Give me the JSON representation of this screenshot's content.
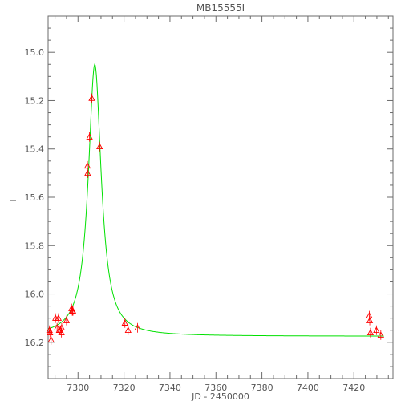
{
  "chart_data": {
    "type": "scatter",
    "title": "MB15555I",
    "xlabel": "JD - 2450000",
    "ylabel": "I",
    "xlim": [
      7287,
      7437
    ],
    "ylim": [
      16.35,
      14.85
    ],
    "y_inverted": true,
    "grid": false,
    "x_ticks": [
      7300,
      7320,
      7340,
      7360,
      7380,
      7400,
      7420
    ],
    "y_ticks": [
      15.0,
      15.2,
      15.4,
      15.6,
      15.8,
      16.0,
      16.2
    ],
    "x_tick_labels": [
      "7300",
      "7320",
      "7340",
      "7360",
      "7380",
      "7400",
      "7420"
    ],
    "y_tick_labels": [
      "15.0",
      "15.2",
      "15.4",
      "15.6",
      "15.8",
      "16.0",
      "16.2"
    ],
    "series": [
      {
        "kind": "points",
        "marker": "triangle",
        "color": "#ff0000",
        "x": [
          7287.6,
          7287.8,
          7288.3,
          7290.2,
          7290.9,
          7291.5,
          7291.8,
          7292.3,
          7292.8,
          7292.9,
          7295.0,
          7297.2,
          7297.5,
          7297.8,
          7304.1,
          7304.2,
          7305.0,
          7306.0,
          7309.4,
          7320.4,
          7321.8,
          7325.9,
          7426.7,
          7426.9,
          7427.2,
          7429.8,
          7431.7
        ],
        "y": [
          16.15,
          16.16,
          16.19,
          16.1,
          16.14,
          16.1,
          16.15,
          16.15,
          16.16,
          16.14,
          16.11,
          16.06,
          16.07,
          16.07,
          15.47,
          15.5,
          15.35,
          15.19,
          15.39,
          16.12,
          16.15,
          16.14,
          16.09,
          16.11,
          16.16,
          16.15,
          16.17
        ]
      },
      {
        "kind": "model",
        "color": "#00e000",
        "baseline": 16.175,
        "peak_x": 7307.3,
        "peak_y": 15.05,
        "width": 3.4
      }
    ]
  }
}
